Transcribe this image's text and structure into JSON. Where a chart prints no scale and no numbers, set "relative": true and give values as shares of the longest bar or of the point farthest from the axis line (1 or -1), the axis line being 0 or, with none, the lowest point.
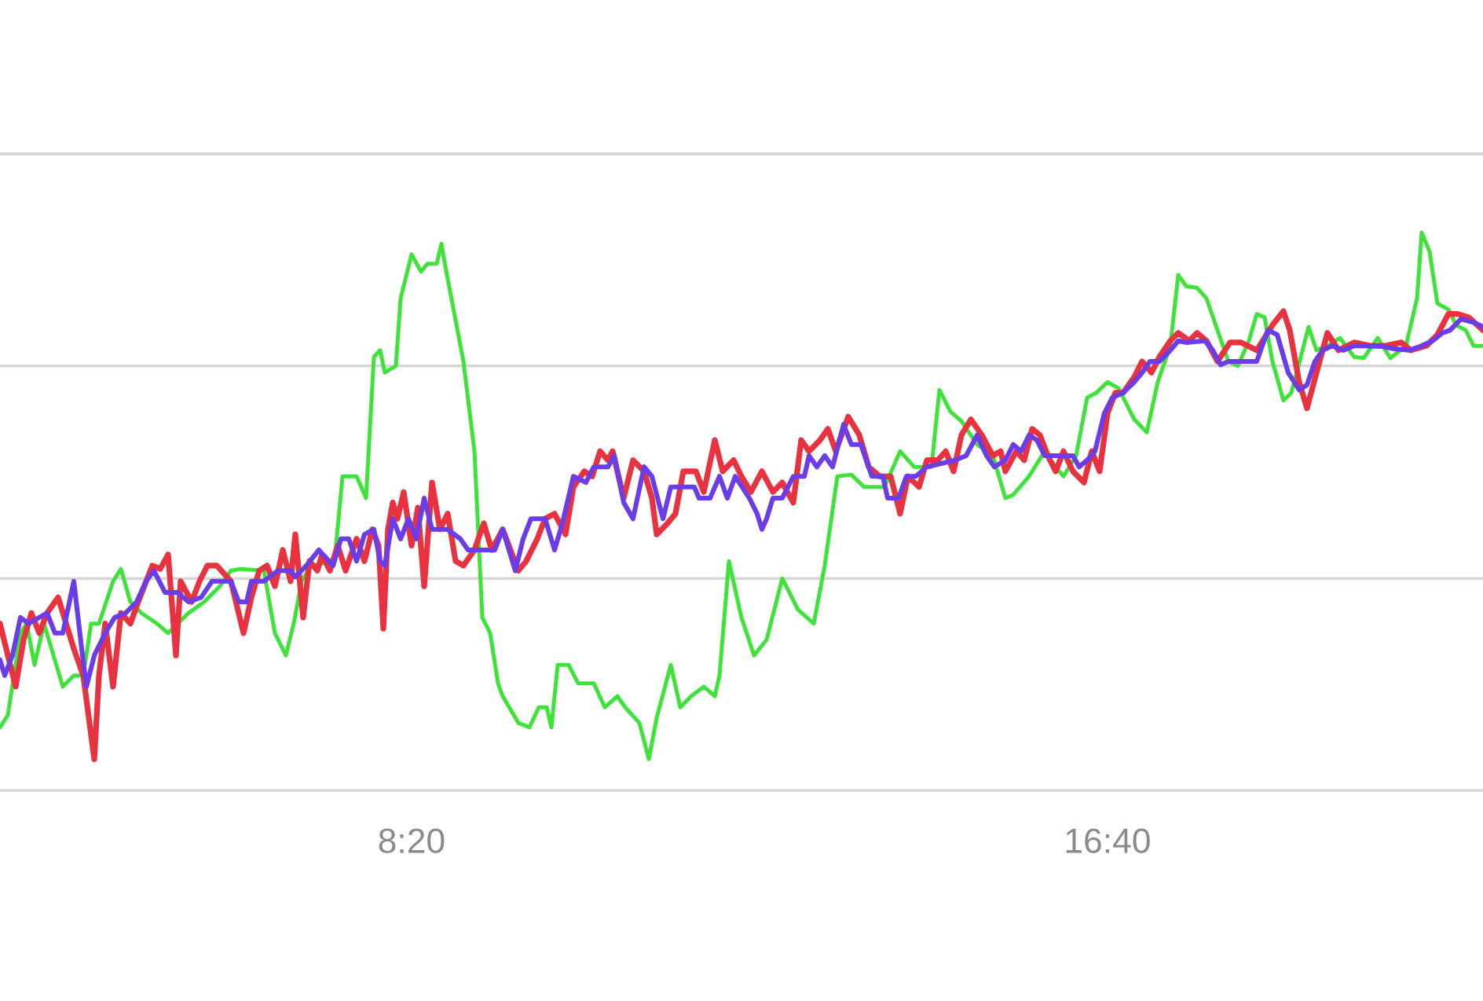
{
  "chart_data": {
    "type": "line",
    "relative": true,
    "tick_labels": "x",
    "xlim": [
      3.406,
      21.163
    ],
    "xticks": [
      {
        "value": 8.3333,
        "label": "8:20"
      },
      {
        "value": 16.6667,
        "label": "16:40"
      }
    ],
    "ref_lines": [
      {
        "axis": "y",
        "value": 0.38,
        "color": "#d6d6d6"
      },
      {
        "axis": "y",
        "value": 0.761,
        "color": "#d6d6d6"
      },
      {
        "axis": "y",
        "value": 1.141,
        "color": "#d6d6d6"
      }
    ],
    "series": [
      {
        "color": "#3ee33a",
        "x": [
          3.406,
          3.5,
          3.651,
          3.726,
          3.82,
          3.933,
          4.158,
          4.29,
          4.403,
          4.497,
          4.591,
          4.76,
          4.854,
          4.967,
          5.099,
          5.287,
          5.419,
          5.532,
          5.663,
          5.851,
          6.039,
          6.171,
          6.284,
          6.566,
          6.698,
          6.829,
          6.923,
          7.018,
          7.13,
          7.412,
          7.507,
          7.676,
          7.789,
          7.883,
          7.958,
          8.014,
          8.146,
          8.203,
          8.334,
          8.447,
          8.522,
          8.635,
          8.692,
          8.729,
          8.823,
          8.955,
          9.087,
          9.181,
          9.275,
          9.369,
          9.425,
          9.613,
          9.745,
          9.858,
          9.952,
          10.008,
          10.084,
          10.215,
          10.328,
          10.516,
          10.648,
          10.798,
          10.892,
          11.062,
          11.175,
          11.269,
          11.438,
          11.551,
          11.682,
          11.833,
          11.965,
          12.021,
          12.134,
          12.284,
          12.435,
          12.585,
          12.773,
          12.961,
          13.15,
          13.281,
          13.432,
          13.601,
          13.752,
          13.996,
          14.184,
          14.353,
          14.56,
          14.654,
          14.786,
          14.918,
          15.106,
          15.294,
          15.444,
          15.538,
          15.727,
          15.915,
          16.046,
          16.14,
          16.291,
          16.423,
          16.535,
          16.667,
          16.799,
          16.987,
          17.137,
          17.269,
          17.419,
          17.514,
          17.608,
          17.739,
          17.852,
          17.984,
          18.115,
          18.228,
          18.36,
          18.454,
          18.548,
          18.642,
          18.774,
          18.868,
          18.981,
          19.075,
          19.169,
          19.3,
          19.451,
          19.62,
          19.733,
          19.902,
          20.053,
          20.241,
          20.373,
          20.429,
          20.523,
          20.617,
          20.749,
          20.843,
          20.956,
          21.05,
          21.163
        ],
        "values": [
          0.113,
          0.135,
          0.282,
          0.299,
          0.225,
          0.299,
          0.186,
          0.206,
          0.206,
          0.299,
          0.299,
          0.375,
          0.397,
          0.338,
          0.318,
          0.299,
          0.282,
          0.299,
          0.318,
          0.338,
          0.366,
          0.394,
          0.397,
          0.394,
          0.282,
          0.242,
          0.299,
          0.375,
          0.403,
          0.411,
          0.563,
          0.563,
          0.524,
          0.777,
          0.789,
          0.749,
          0.761,
          0.882,
          0.961,
          0.93,
          0.944,
          0.944,
          0.98,
          0.947,
          0.873,
          0.769,
          0.608,
          0.31,
          0.282,
          0.192,
          0.169,
          0.121,
          0.113,
          0.149,
          0.149,
          0.113,
          0.225,
          0.225,
          0.192,
          0.192,
          0.149,
          0.169,
          0.149,
          0.121,
          0.056,
          0.13,
          0.225,
          0.149,
          0.169,
          0.186,
          0.169,
          0.206,
          0.411,
          0.31,
          0.242,
          0.27,
          0.38,
          0.324,
          0.299,
          0.403,
          0.563,
          0.566,
          0.544,
          0.544,
          0.608,
          0.58,
          0.58,
          0.718,
          0.679,
          0.662,
          0.62,
          0.6,
          0.524,
          0.53,
          0.563,
          0.608,
          0.58,
          0.563,
          0.6,
          0.704,
          0.713,
          0.732,
          0.721,
          0.665,
          0.642,
          0.732,
          0.797,
          0.924,
          0.904,
          0.901,
          0.882,
          0.825,
          0.769,
          0.761,
          0.806,
          0.854,
          0.848,
          0.769,
          0.699,
          0.713,
          0.777,
          0.831,
          0.789,
          0.797,
          0.811,
          0.777,
          0.775,
          0.811,
          0.775,
          0.797,
          0.882,
          1.0,
          0.966,
          0.873,
          0.862,
          0.834,
          0.825,
          0.797,
          0.797
        ]
      },
      {
        "color": "#e8323f",
        "x": [
          3.406,
          3.5,
          3.594,
          3.688,
          3.782,
          3.876,
          3.97,
          4.102,
          4.29,
          4.403,
          4.535,
          4.591,
          4.666,
          4.76,
          4.854,
          4.967,
          5.061,
          5.23,
          5.325,
          5.419,
          5.513,
          5.569,
          5.701,
          5.795,
          5.889,
          6.002,
          6.171,
          6.322,
          6.416,
          6.51,
          6.604,
          6.698,
          6.792,
          6.886,
          6.942,
          7.036,
          7.112,
          7.206,
          7.262,
          7.356,
          7.45,
          7.544,
          7.676,
          7.77,
          7.864,
          7.939,
          7.996,
          8.052,
          8.109,
          8.165,
          8.24,
          8.334,
          8.409,
          8.485,
          8.579,
          8.673,
          8.767,
          8.861,
          8.955,
          9.087,
          9.199,
          9.294,
          9.425,
          9.613,
          9.707,
          9.839,
          9.933,
          10.046,
          10.178,
          10.272,
          10.403,
          10.497,
          10.591,
          10.685,
          10.742,
          10.874,
          10.986,
          11.118,
          11.212,
          11.269,
          11.4,
          11.494,
          11.588,
          11.739,
          11.833,
          11.965,
          12.059,
          12.19,
          12.284,
          12.397,
          12.529,
          12.661,
          12.773,
          12.905,
          12.999,
          13.093,
          13.225,
          13.319,
          13.413,
          13.563,
          13.695,
          13.808,
          13.94,
          14.071,
          14.184,
          14.278,
          14.41,
          14.504,
          14.636,
          14.73,
          14.824,
          14.918,
          15.031,
          15.162,
          15.294,
          15.388,
          15.444,
          15.576,
          15.67,
          15.764,
          15.858,
          15.952,
          16.046,
          16.14,
          16.253,
          16.385,
          16.479,
          16.573,
          16.667,
          16.761,
          16.855,
          16.987,
          17.081,
          17.194,
          17.288,
          17.419,
          17.514,
          17.645,
          17.739,
          17.852,
          17.984,
          18.134,
          18.266,
          18.454,
          18.642,
          18.774,
          18.849,
          18.962,
          19.056,
          19.169,
          19.3,
          19.432,
          19.62,
          19.808,
          19.996,
          20.185,
          20.298,
          20.486,
          20.617,
          20.749,
          20.862,
          20.993,
          21.163
        ],
        "values": [
          0.299,
          0.242,
          0.186,
          0.27,
          0.318,
          0.282,
          0.318,
          0.346,
          0.254,
          0.206,
          0.056,
          0.206,
          0.299,
          0.186,
          0.318,
          0.299,
          0.338,
          0.403,
          0.397,
          0.423,
          0.242,
          0.375,
          0.338,
          0.375,
          0.403,
          0.403,
          0.375,
          0.282,
          0.346,
          0.394,
          0.403,
          0.366,
          0.431,
          0.375,
          0.459,
          0.31,
          0.411,
          0.394,
          0.423,
          0.394,
          0.439,
          0.394,
          0.451,
          0.411,
          0.468,
          0.439,
          0.29,
          0.468,
          0.516,
          0.487,
          0.535,
          0.439,
          0.507,
          0.366,
          0.552,
          0.468,
          0.496,
          0.411,
          0.403,
          0.431,
          0.479,
          0.431,
          0.468,
          0.394,
          0.411,
          0.451,
          0.487,
          0.496,
          0.459,
          0.544,
          0.572,
          0.563,
          0.608,
          0.592,
          0.608,
          0.524,
          0.592,
          0.572,
          0.524,
          0.459,
          0.479,
          0.496,
          0.572,
          0.572,
          0.535,
          0.628,
          0.572,
          0.592,
          0.563,
          0.535,
          0.572,
          0.535,
          0.552,
          0.516,
          0.628,
          0.608,
          0.628,
          0.648,
          0.608,
          0.67,
          0.637,
          0.58,
          0.563,
          0.563,
          0.496,
          0.563,
          0.544,
          0.592,
          0.592,
          0.608,
          0.572,
          0.637,
          0.665,
          0.637,
          0.6,
          0.608,
          0.572,
          0.608,
          0.592,
          0.648,
          0.637,
          0.6,
          0.572,
          0.608,
          0.572,
          0.552,
          0.608,
          0.572,
          0.676,
          0.713,
          0.713,
          0.741,
          0.769,
          0.749,
          0.777,
          0.806,
          0.82,
          0.806,
          0.82,
          0.806,
          0.769,
          0.803,
          0.803,
          0.789,
          0.834,
          0.859,
          0.825,
          0.732,
          0.685,
          0.749,
          0.82,
          0.789,
          0.803,
          0.797,
          0.797,
          0.803,
          0.789,
          0.797,
          0.817,
          0.854,
          0.854,
          0.848,
          0.825
        ]
      },
      {
        "color": "#6a3de8",
        "x": [
          3.406,
          3.462,
          3.556,
          3.651,
          3.745,
          3.876,
          3.97,
          4.064,
          4.158,
          4.29,
          4.384,
          4.441,
          4.535,
          4.666,
          4.779,
          4.911,
          5.042,
          5.155,
          5.249,
          5.381,
          5.532,
          5.663,
          5.814,
          5.945,
          6.171,
          6.265,
          6.359,
          6.416,
          6.566,
          6.735,
          6.886,
          6.942,
          7.074,
          7.224,
          7.394,
          7.488,
          7.582,
          7.676,
          7.77,
          7.883,
          7.958,
          8.014,
          8.109,
          8.203,
          8.297,
          8.391,
          8.485,
          8.579,
          8.767,
          8.917,
          9.011,
          9.331,
          9.425,
          9.576,
          9.67,
          9.764,
          9.933,
          10.046,
          10.14,
          10.272,
          10.422,
          10.516,
          10.685,
          10.761,
          10.874,
          10.986,
          11.118,
          11.212,
          11.344,
          11.438,
          11.72,
          11.776,
          11.908,
          12.021,
          12.115,
          12.209,
          12.378,
          12.472,
          12.529,
          12.585,
          12.661,
          12.773,
          12.905,
          13.037,
          13.093,
          13.187,
          13.281,
          13.375,
          13.507,
          13.601,
          13.714,
          13.846,
          13.977,
          14.034,
          14.165,
          14.259,
          14.372,
          14.504,
          14.842,
          14.974,
          15.106,
          15.219,
          15.313,
          15.444,
          15.538,
          15.632,
          15.727,
          15.821,
          15.915,
          16.253,
          16.328,
          16.423,
          16.517,
          16.629,
          16.723,
          16.855,
          16.987,
          17.081,
          17.175,
          17.288,
          17.419,
          17.514,
          17.608,
          17.833,
          17.927,
          18.021,
          18.115,
          18.454,
          18.586,
          18.699,
          18.83,
          18.962,
          19.056,
          19.15,
          19.244,
          19.357,
          19.489,
          19.62,
          19.921,
          20.09,
          20.279,
          20.429,
          20.561,
          20.674,
          20.768,
          20.899,
          21.05,
          21.163
        ],
        "values": [
          0.234,
          0.206,
          0.242,
          0.31,
          0.299,
          0.31,
          0.318,
          0.282,
          0.282,
          0.375,
          0.254,
          0.186,
          0.242,
          0.282,
          0.31,
          0.318,
          0.338,
          0.375,
          0.394,
          0.355,
          0.355,
          0.338,
          0.346,
          0.375,
          0.375,
          0.338,
          0.338,
          0.375,
          0.375,
          0.394,
          0.394,
          0.383,
          0.403,
          0.431,
          0.403,
          0.451,
          0.451,
          0.411,
          0.459,
          0.468,
          0.411,
          0.403,
          0.487,
          0.451,
          0.487,
          0.451,
          0.524,
          0.468,
          0.468,
          0.451,
          0.431,
          0.431,
          0.468,
          0.394,
          0.451,
          0.487,
          0.487,
          0.431,
          0.479,
          0.563,
          0.552,
          0.58,
          0.58,
          0.6,
          0.516,
          0.487,
          0.58,
          0.563,
          0.487,
          0.544,
          0.544,
          0.524,
          0.524,
          0.563,
          0.524,
          0.563,
          0.524,
          0.496,
          0.468,
          0.487,
          0.524,
          0.524,
          0.563,
          0.563,
          0.6,
          0.58,
          0.6,
          0.58,
          0.656,
          0.62,
          0.62,
          0.563,
          0.563,
          0.524,
          0.524,
          0.563,
          0.563,
          0.58,
          0.592,
          0.6,
          0.637,
          0.6,
          0.58,
          0.592,
          0.62,
          0.608,
          0.637,
          0.628,
          0.6,
          0.6,
          0.58,
          0.592,
          0.608,
          0.676,
          0.704,
          0.713,
          0.732,
          0.749,
          0.769,
          0.769,
          0.789,
          0.806,
          0.803,
          0.806,
          0.789,
          0.763,
          0.769,
          0.769,
          0.825,
          0.817,
          0.749,
          0.718,
          0.727,
          0.769,
          0.789,
          0.797,
          0.789,
          0.797,
          0.797,
          0.792,
          0.789,
          0.797,
          0.806,
          0.82,
          0.825,
          0.845,
          0.839,
          0.831
        ]
      }
    ]
  }
}
